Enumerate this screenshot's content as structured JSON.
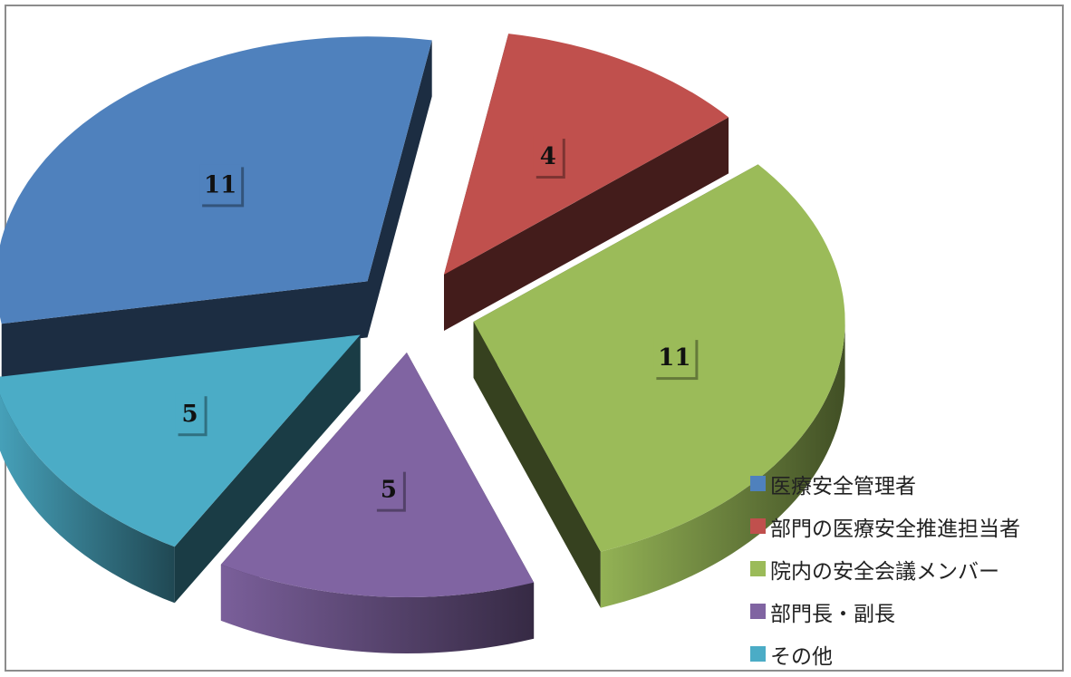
{
  "chart_data": {
    "type": "pie",
    "categories": [
      "医療安全管理者",
      "部門の医療安全推進担当者",
      "院内の安全会議メンバー",
      "部門長・副長",
      "その他"
    ],
    "values": [
      11,
      4,
      11,
      5,
      5
    ],
    "colors": [
      "#4f81bd",
      "#c0504d",
      "#9bbb59",
      "#8064a2",
      "#4bacc6"
    ],
    "title": "",
    "exploded": true,
    "three_d": true,
    "legend_position": "bottom-right"
  }
}
